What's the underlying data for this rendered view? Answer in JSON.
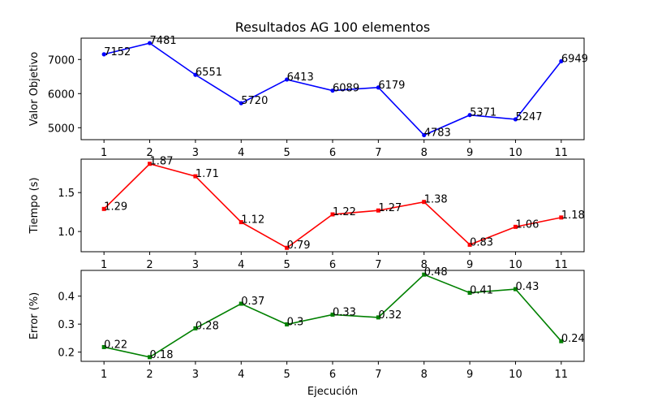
{
  "chart_data": [
    {
      "type": "line",
      "title": "Resultados AG 100 elementos",
      "xlabel": "",
      "ylabel": "Valor Objetivo",
      "x": [
        1,
        2,
        3,
        4,
        5,
        6,
        7,
        8,
        9,
        10,
        11
      ],
      "series": [
        {
          "color": "#0000ff",
          "values": [
            7152,
            7481,
            6551,
            5720,
            6413,
            6089,
            6179,
            4783,
            5371,
            5247,
            6949
          ]
        }
      ],
      "data_labels": [
        "7152",
        "7481",
        "6551",
        "5720",
        "6413",
        "6089",
        "6179",
        "4783",
        "5371",
        "5247",
        "6949"
      ],
      "ylim": [
        4650,
        7625
      ],
      "yticks": [
        5000,
        6000,
        7000
      ],
      "ytick_labels": [
        "5000",
        "6000",
        "7000"
      ],
      "xticks": [
        1,
        2,
        3,
        4,
        5,
        6,
        7,
        8,
        9,
        10,
        11
      ],
      "xtick_labels": [
        "1",
        "2",
        "3",
        "4",
        "5",
        "6",
        "7",
        "8",
        "9",
        "10",
        "11"
      ],
      "xlim": [
        0.5,
        11.5
      ],
      "grid": false,
      "marker": "circle"
    },
    {
      "type": "line",
      "title": "",
      "xlabel": "",
      "ylabel": "Tiempo (s)",
      "x": [
        1,
        2,
        3,
        4,
        5,
        6,
        7,
        8,
        9,
        10,
        11
      ],
      "series": [
        {
          "color": "#ff0000",
          "values": [
            1.29,
            1.87,
            1.71,
            1.12,
            0.79,
            1.22,
            1.27,
            1.38,
            0.83,
            1.06,
            1.18
          ]
        }
      ],
      "data_labels": [
        "1.29",
        "1.87",
        "1.71",
        "1.12",
        "0.79",
        "1.22",
        "1.27",
        "1.38",
        "0.83",
        "1.06",
        "1.18"
      ],
      "ylim": [
        0.74,
        1.93
      ],
      "yticks": [
        1.0,
        1.5
      ],
      "ytick_labels": [
        "1.0",
        "1.5"
      ],
      "xticks": [
        1,
        2,
        3,
        4,
        5,
        6,
        7,
        8,
        9,
        10,
        11
      ],
      "xtick_labels": [
        "1",
        "2",
        "3",
        "4",
        "5",
        "6",
        "7",
        "8",
        "9",
        "10",
        "11"
      ],
      "xlim": [
        0.5,
        11.5
      ],
      "grid": false,
      "marker": "square"
    },
    {
      "type": "line",
      "title": "",
      "xlabel": "Ejecución",
      "ylabel": "Error (%)",
      "x": [
        1,
        2,
        3,
        4,
        5,
        6,
        7,
        8,
        9,
        10,
        11
      ],
      "series": [
        {
          "color": "#008000",
          "values": [
            0.22,
            0.18,
            0.28,
            0.37,
            0.3,
            0.33,
            0.32,
            0.48,
            0.41,
            0.43,
            0.24
          ]
        }
      ],
      "data_labels": [
        "0.22",
        "0.18",
        "0.28",
        "0.37",
        "0.3",
        "0.33",
        "0.32",
        "0.48",
        "0.41",
        "0.43",
        "0.24"
      ],
      "plot_values": [
        0.218,
        0.182,
        0.285,
        0.373,
        0.299,
        0.334,
        0.324,
        0.477,
        0.412,
        0.425,
        0.239
      ],
      "ylim": [
        0.167,
        0.492
      ],
      "yticks": [
        0.2,
        0.3,
        0.4
      ],
      "ytick_labels": [
        "0.2",
        "0.3",
        "0.4"
      ],
      "xticks": [
        1,
        2,
        3,
        4,
        5,
        6,
        7,
        8,
        9,
        10,
        11
      ],
      "xtick_labels": [
        "1",
        "2",
        "3",
        "4",
        "5",
        "6",
        "7",
        "8",
        "9",
        "10",
        "11"
      ],
      "xlim": [
        0.5,
        11.5
      ],
      "grid": false,
      "marker": "square"
    }
  ]
}
